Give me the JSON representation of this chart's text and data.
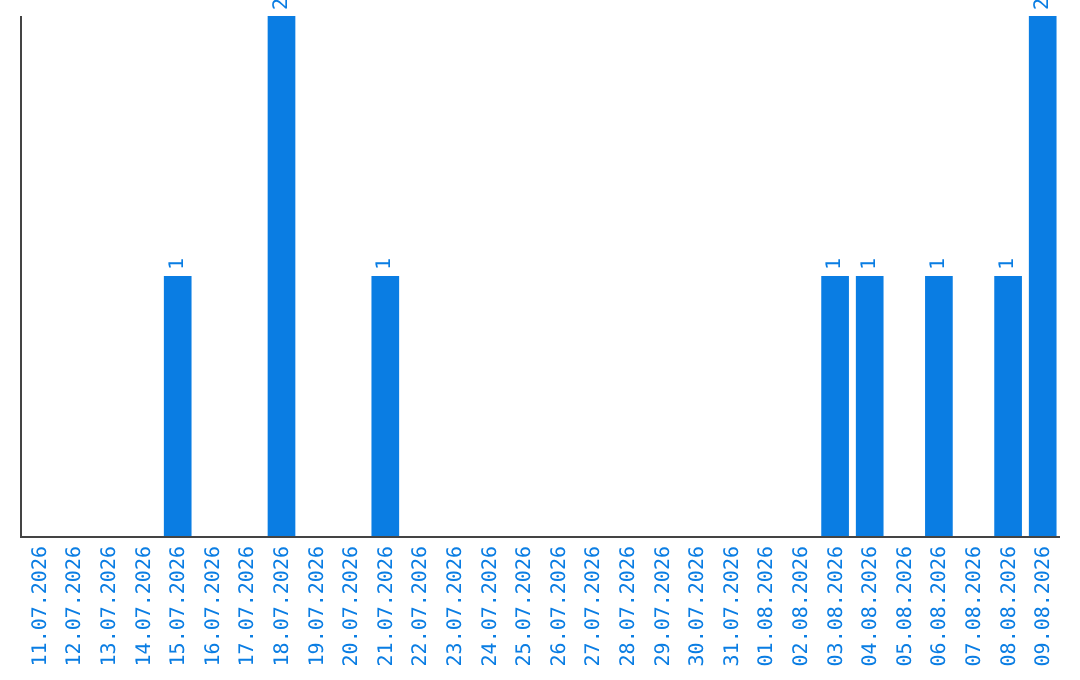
{
  "chart_data": {
    "type": "bar",
    "categories": [
      "11.07.2026",
      "12.07.2026",
      "13.07.2026",
      "14.07.2026",
      "15.07.2026",
      "16.07.2026",
      "17.07.2026",
      "18.07.2026",
      "19.07.2026",
      "20.07.2026",
      "21.07.2026",
      "22.07.2026",
      "23.07.2026",
      "24.07.2026",
      "25.07.2026",
      "26.07.2026",
      "27.07.2026",
      "28.07.2026",
      "29.07.2026",
      "30.07.2026",
      "31.07.2026",
      "01.08.2026",
      "02.08.2026",
      "03.08.2026",
      "04.08.2026",
      "05.08.2026",
      "06.08.2026",
      "07.08.2026",
      "08.08.2026",
      "09.08.2026"
    ],
    "values": [
      0,
      0,
      0,
      0,
      1,
      0,
      0,
      2,
      0,
      0,
      1,
      0,
      0,
      0,
      0,
      0,
      0,
      0,
      0,
      0,
      0,
      0,
      0,
      1,
      1,
      0,
      1,
      0,
      1,
      2
    ],
    "color": "#0a7de3",
    "value_labels": [
      null,
      null,
      null,
      null,
      "1",
      null,
      null,
      "2",
      null,
      null,
      "1",
      null,
      null,
      null,
      null,
      null,
      null,
      null,
      null,
      null,
      null,
      null,
      null,
      "1",
      "1",
      null,
      "1",
      null,
      "1",
      "2"
    ],
    "tick_labels": "x"
  }
}
